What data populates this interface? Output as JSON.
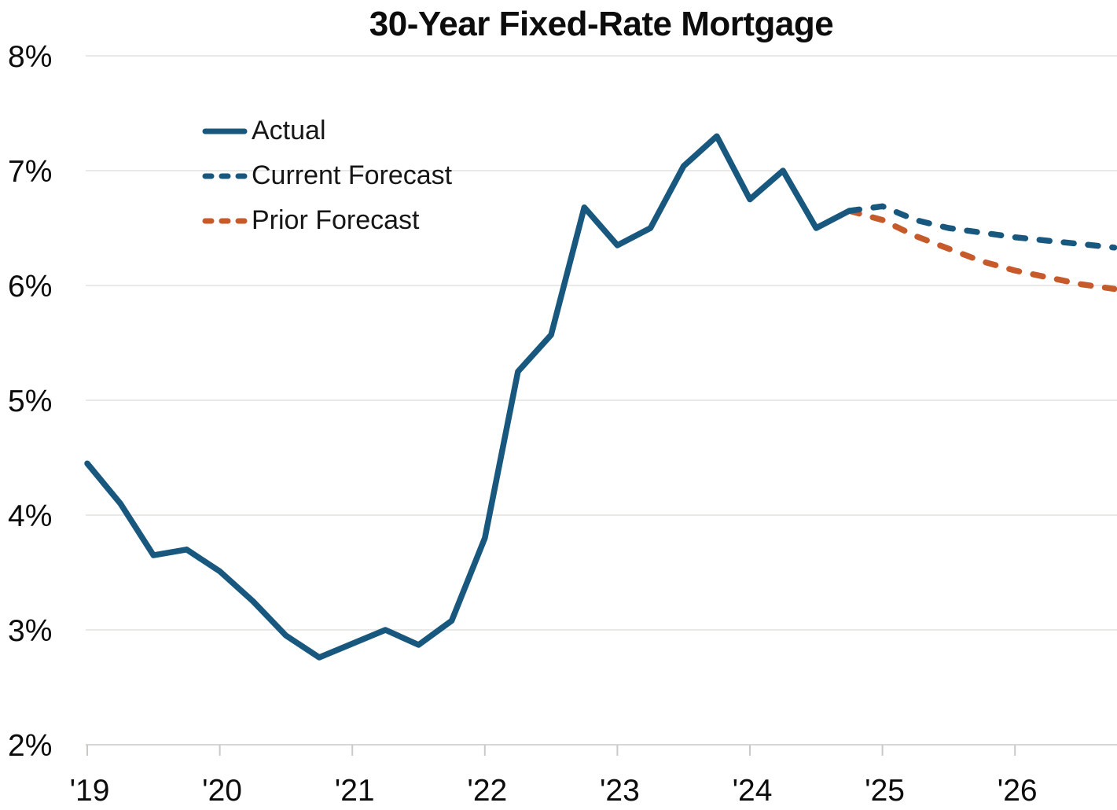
{
  "title": "30-Year Fixed-Rate Mortgage",
  "legend": [
    {
      "label": "Actual",
      "style": "solid",
      "color": "#19587e"
    },
    {
      "label": "Current Forecast",
      "style": "dashed",
      "color": "#19587e"
    },
    {
      "label": "Prior Forecast",
      "style": "dashed",
      "color": "#c65a2b"
    }
  ],
  "colors": {
    "actual": "#19587e",
    "current_forecast": "#19587e",
    "prior_forecast": "#c65a2b",
    "gridline": "#e9e9e8",
    "axis": "#d7d7d5",
    "tick": "#c9c9c7",
    "text": "#0c0c0c"
  },
  "chart_data": {
    "type": "line",
    "title": "30-Year Fixed-Rate Mortgage",
    "xlabel": "",
    "ylabel": "",
    "ylim": [
      2,
      8
    ],
    "xlim": [
      2019.0,
      2026.85
    ],
    "grid": "horizontal",
    "legend_position": "upper-left-inside",
    "y_ticks": [
      {
        "value": 2,
        "label": "2%"
      },
      {
        "value": 3,
        "label": "3%"
      },
      {
        "value": 4,
        "label": "4%"
      },
      {
        "value": 5,
        "label": "5%"
      },
      {
        "value": 6,
        "label": "6%"
      },
      {
        "value": 7,
        "label": "7%"
      },
      {
        "value": 8,
        "label": "8%"
      }
    ],
    "x_ticks": [
      {
        "value": 2019,
        "label": "'19"
      },
      {
        "value": 2020,
        "label": "'20"
      },
      {
        "value": 2021,
        "label": "'21"
      },
      {
        "value": 2022,
        "label": "'22"
      },
      {
        "value": 2023,
        "label": "'23"
      },
      {
        "value": 2024,
        "label": "'24"
      },
      {
        "value": 2025,
        "label": "'25"
      },
      {
        "value": 2026,
        "label": "'26"
      }
    ],
    "series": [
      {
        "name": "Actual",
        "style": "solid",
        "color": "#19587e",
        "x": [
          2019.0,
          2019.25,
          2019.5,
          2019.75,
          2020.0,
          2020.25,
          2020.5,
          2020.75,
          2021.0,
          2021.25,
          2021.5,
          2021.75,
          2022.0,
          2022.25,
          2022.5,
          2022.75,
          2023.0,
          2023.25,
          2023.5,
          2023.75,
          2024.0,
          2024.25,
          2024.5,
          2024.75
        ],
        "values": [
          4.45,
          4.1,
          3.65,
          3.7,
          3.51,
          3.25,
          2.95,
          2.76,
          2.88,
          3.0,
          2.87,
          3.08,
          3.8,
          5.25,
          5.57,
          6.68,
          6.35,
          6.5,
          7.04,
          7.3,
          6.75,
          7.0,
          6.5,
          6.65
        ]
      },
      {
        "name": "Current Forecast",
        "style": "dashed",
        "color": "#19587e",
        "x": [
          2024.75,
          2025.0,
          2025.25,
          2025.5,
          2025.75,
          2026.0,
          2026.25,
          2026.5,
          2026.75
        ],
        "values": [
          6.65,
          6.69,
          6.57,
          6.5,
          6.46,
          6.42,
          6.39,
          6.36,
          6.33
        ]
      },
      {
        "name": "Prior Forecast",
        "style": "dashed",
        "color": "#c65a2b",
        "x": [
          2024.75,
          2025.0,
          2025.25,
          2025.5,
          2025.75,
          2026.0,
          2026.25,
          2026.5,
          2026.75
        ],
        "values": [
          6.65,
          6.57,
          6.43,
          6.32,
          6.21,
          6.13,
          6.07,
          6.01,
          5.97
        ]
      }
    ]
  }
}
